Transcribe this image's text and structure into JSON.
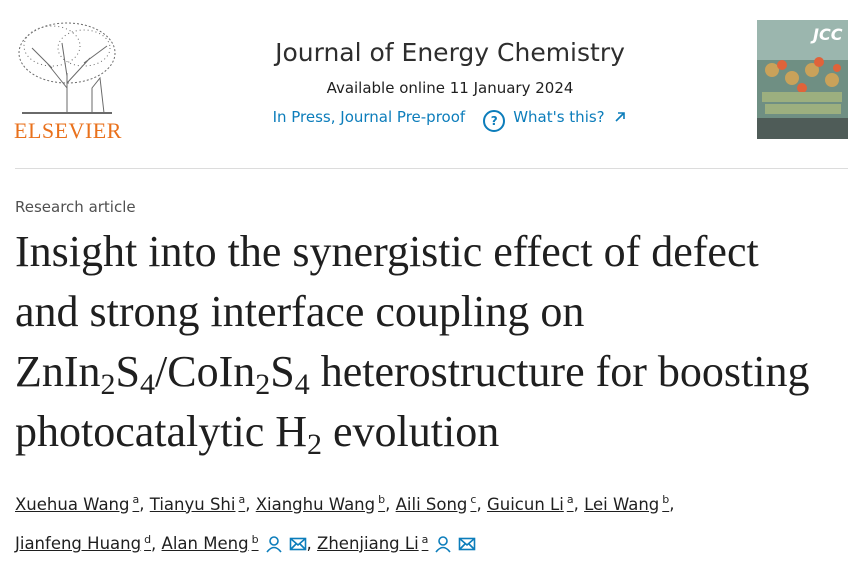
{
  "header": {
    "publisher": "ELSEVIER",
    "journal": "Journal of Energy Chemistry",
    "available": "Available online 11 January 2024",
    "status_link": "In Press, Journal Pre-proof",
    "help_link": "What's this?",
    "cover_text": "JCC"
  },
  "article": {
    "type": "Research article",
    "title_parts": [
      {
        "text": "Insight into the synergistic effect of defect and strong interface coupling on ZnIn"
      },
      {
        "text": "2",
        "sub": true
      },
      {
        "text": "S"
      },
      {
        "text": "4",
        "sub": true
      },
      {
        "text": "/CoIn"
      },
      {
        "text": "2",
        "sub": true
      },
      {
        "text": "S"
      },
      {
        "text": "4",
        "sub": true
      },
      {
        "text": " heterostructure for boosting photocatalytic H"
      },
      {
        "text": "2",
        "sub": true
      },
      {
        "text": " evolution"
      }
    ],
    "separator": ",",
    "authors": [
      {
        "name": "Xuehua Wang",
        "aff": "a"
      },
      {
        "name": "Tianyu Shi",
        "aff": "a"
      },
      {
        "name": "Xianghu Wang",
        "aff": "b"
      },
      {
        "name": "Aili Song",
        "aff": "c"
      },
      {
        "name": "Guicun Li",
        "aff": "a"
      },
      {
        "name": "Lei Wang",
        "aff": "b"
      },
      {
        "name": "Jianfeng Huang",
        "aff": "d"
      },
      {
        "name": "Alan Meng",
        "aff": "b",
        "corresponding": true
      },
      {
        "name": "Zhenjiang Li",
        "aff": "a",
        "corresponding": true
      }
    ]
  }
}
